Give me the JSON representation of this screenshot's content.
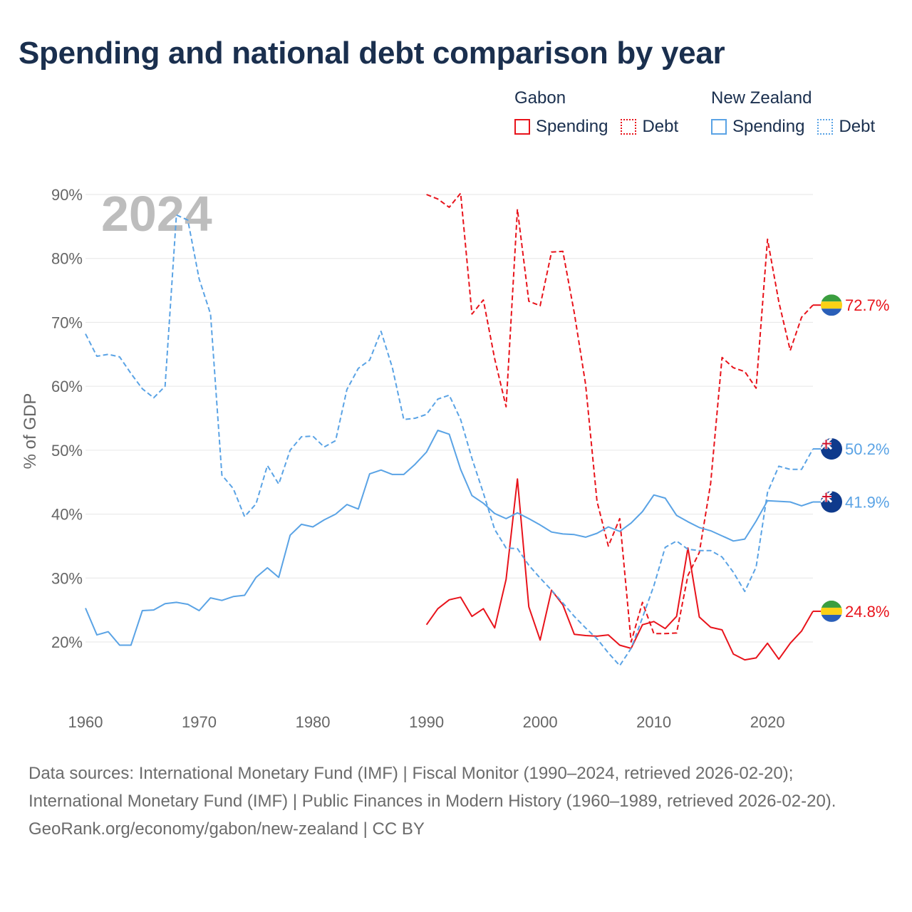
{
  "title": "Spending and national debt comparison by year",
  "legend": {
    "groups": [
      {
        "country": "Gabon",
        "items": [
          {
            "label": "Spending",
            "style": "solid",
            "color": "#e8131b"
          },
          {
            "label": "Debt",
            "style": "dotted",
            "color": "#e8131b"
          }
        ]
      },
      {
        "country": "New Zealand",
        "items": [
          {
            "label": "Spending",
            "style": "solid",
            "color": "#5aa3e5"
          },
          {
            "label": "Debt",
            "style": "dotted",
            "color": "#5aa3e5"
          }
        ]
      }
    ]
  },
  "footer": {
    "sources": "Data sources: International Monetary Fund (IMF) | Fiscal Monitor (1990–2024, retrieved 2026-02-20); International Monetary Fund (IMF) | Public Finances in Modern History (1960–1989, retrieved 2026-02-20).",
    "credit": "GeoRank.org/economy/gabon/new-zealand | CC BY"
  },
  "chart_data": {
    "type": "line",
    "title": "Spending and national debt comparison by year",
    "year_label": "2024",
    "xlabel": "",
    "ylabel": "% of GDP",
    "xlim": [
      1960,
      2024
    ],
    "ylim": [
      12,
      91
    ],
    "xticks": [
      1960,
      1970,
      1980,
      1990,
      2000,
      2010,
      2020
    ],
    "yticks": [
      20,
      30,
      40,
      50,
      60,
      70,
      80,
      90
    ],
    "ytick_labels": [
      "20%",
      "30%",
      "40%",
      "50%",
      "60%",
      "70%",
      "80%",
      "90%"
    ],
    "grid": true,
    "series": [
      {
        "name": "Gabon Spending",
        "country": "Gabon",
        "metric": "Spending",
        "color": "#e8131b",
        "style": "solid",
        "flag": "gabon-flag",
        "end_label": "24.8%",
        "x": [
          1990,
          1991,
          1992,
          1993,
          1994,
          1995,
          1996,
          1997,
          1998,
          1999,
          2000,
          2001,
          2002,
          2003,
          2004,
          2005,
          2006,
          2007,
          2008,
          2009,
          2010,
          2011,
          2012,
          2013,
          2014,
          2015,
          2016,
          2017,
          2018,
          2019,
          2020,
          2021,
          2022,
          2023,
          2024
        ],
        "values": [
          22.7,
          25.2,
          26.6,
          27.0,
          24.0,
          25.2,
          22.2,
          29.8,
          45.5,
          25.5,
          20.3,
          28.1,
          25.8,
          21.2,
          21.0,
          20.9,
          21.1,
          19.5,
          19.0,
          22.7,
          23.2,
          22.1,
          24.0,
          34.7,
          23.9,
          22.3,
          21.9,
          18.1,
          17.2,
          17.5,
          19.8,
          17.3,
          19.8,
          21.7,
          24.8
        ]
      },
      {
        "name": "Gabon Debt",
        "country": "Gabon",
        "metric": "Debt",
        "color": "#e8131b",
        "style": "dashed",
        "flag": "gabon-flag",
        "end_label": "72.7%",
        "x": [
          1990,
          1991,
          1992,
          1993,
          1994,
          1995,
          1996,
          1997,
          1998,
          1999,
          2000,
          2001,
          2002,
          2003,
          2004,
          2005,
          2006,
          2007,
          2008,
          2009,
          2010,
          2011,
          2012,
          2013,
          2014,
          2015,
          2016,
          2017,
          2018,
          2019,
          2020,
          2021,
          2022,
          2023,
          2024
        ],
        "values": [
          90.0,
          89.3,
          88.0,
          90.2,
          71.3,
          73.5,
          64.3,
          56.8,
          87.7,
          73.3,
          72.6,
          81.0,
          81.1,
          71.5,
          60.3,
          42.0,
          35.0,
          39.3,
          20.0,
          26.2,
          21.3,
          21.3,
          21.4,
          30.4,
          34.0,
          44.8,
          64.5,
          62.9,
          62.3,
          59.7,
          83.0,
          73.2,
          65.6,
          70.8,
          72.7
        ]
      },
      {
        "name": "New Zealand Spending",
        "country": "New Zealand",
        "metric": "Spending",
        "color": "#5aa3e5",
        "style": "solid",
        "flag": "new-zealand-flag",
        "end_label": "41.9%",
        "x": [
          1960,
          1961,
          1962,
          1963,
          1964,
          1965,
          1966,
          1967,
          1968,
          1969,
          1970,
          1971,
          1972,
          1973,
          1974,
          1975,
          1976,
          1977,
          1978,
          1979,
          1980,
          1981,
          1982,
          1983,
          1984,
          1985,
          1986,
          1987,
          1988,
          1989,
          1990,
          1991,
          1992,
          1993,
          1994,
          1995,
          1996,
          1997,
          1998,
          1999,
          2000,
          2001,
          2002,
          2003,
          2004,
          2005,
          2006,
          2007,
          2008,
          2009,
          2010,
          2011,
          2012,
          2013,
          2014,
          2015,
          2016,
          2017,
          2018,
          2019,
          2020,
          2021,
          2022,
          2023,
          2024
        ],
        "values": [
          25.3,
          21.1,
          21.6,
          19.5,
          19.5,
          24.9,
          25.0,
          26.0,
          26.2,
          25.9,
          24.9,
          26.9,
          26.5,
          27.1,
          27.3,
          30.1,
          31.6,
          30.1,
          36.7,
          38.4,
          38.0,
          39.1,
          40.0,
          41.5,
          40.8,
          46.3,
          46.9,
          46.2,
          46.2,
          47.8,
          49.7,
          53.1,
          52.5,
          47.0,
          42.9,
          41.7,
          40.1,
          39.3,
          40.2,
          39.3,
          38.3,
          37.2,
          36.9,
          36.8,
          36.4,
          37.0,
          38.0,
          37.3,
          38.6,
          40.4,
          43.0,
          42.5,
          39.8,
          38.8,
          37.9,
          37.4,
          36.6,
          35.8,
          36.1,
          38.9,
          42.1,
          42.0,
          41.9,
          41.3,
          41.9
        ]
      },
      {
        "name": "New Zealand Debt",
        "country": "New Zealand",
        "metric": "Debt",
        "color": "#5aa3e5",
        "style": "dashed",
        "flag": "new-zealand-flag",
        "end_label": "50.2%",
        "x": [
          1960,
          1961,
          1962,
          1963,
          1964,
          1965,
          1966,
          1967,
          1968,
          1969,
          1970,
          1971,
          1972,
          1973,
          1974,
          1975,
          1976,
          1977,
          1978,
          1979,
          1980,
          1981,
          1982,
          1983,
          1984,
          1985,
          1986,
          1987,
          1988,
          1989,
          1990,
          1991,
          1992,
          1993,
          1994,
          1995,
          1996,
          1997,
          1998,
          1999,
          2000,
          2001,
          2002,
          2003,
          2004,
          2005,
          2006,
          2007,
          2008,
          2009,
          2010,
          2011,
          2012,
          2013,
          2014,
          2015,
          2016,
          2017,
          2018,
          2019,
          2020,
          2021,
          2022,
          2023,
          2024
        ],
        "values": [
          68.2,
          64.7,
          65.0,
          64.6,
          62.0,
          59.6,
          58.2,
          60.0,
          86.8,
          86.0,
          76.8,
          71.3,
          46.1,
          44.0,
          39.6,
          41.6,
          47.6,
          44.7,
          50.0,
          52.1,
          52.2,
          50.5,
          51.5,
          59.5,
          62.8,
          64.1,
          68.6,
          62.9,
          54.8,
          55.0,
          55.6,
          58.0,
          58.6,
          54.8,
          48.7,
          43.3,
          37.6,
          34.7,
          34.6,
          32.0,
          30.0,
          28.1,
          26.1,
          24.0,
          22.2,
          20.5,
          18.3,
          16.3,
          19.0,
          23.8,
          28.8,
          34.8,
          35.8,
          34.5,
          34.3,
          34.3,
          33.3,
          30.9,
          27.9,
          31.7,
          43.4,
          47.5,
          47.0,
          47.0,
          50.2
        ]
      }
    ]
  }
}
